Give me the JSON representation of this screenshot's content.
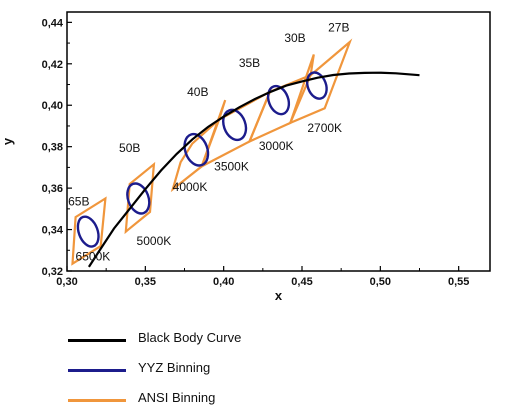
{
  "chart_data": {
    "type": "line",
    "title": "",
    "xlabel": "x",
    "ylabel": "y",
    "xlim": [
      0.3,
      0.57
    ],
    "ylim": [
      0.32,
      0.445
    ],
    "x_ticks": [
      0.3,
      0.35,
      0.4,
      0.45,
      0.5,
      0.55
    ],
    "x_tick_labels": [
      "0,30",
      "0,35",
      "0,40",
      "0,45",
      "0,50",
      "0,55"
    ],
    "y_ticks": [
      0.32,
      0.34,
      0.36,
      0.38,
      0.4,
      0.42,
      0.44
    ],
    "y_tick_labels": [
      "0,32",
      "0,34",
      "0,36",
      "0,38",
      "0,40",
      "0,42",
      "0,44"
    ],
    "grid": false,
    "legend_position": "bottom-left",
    "series": [
      {
        "name": "Black Body Curve",
        "color": "#000000",
        "x": [
          0.314,
          0.32,
          0.33,
          0.34,
          0.35,
          0.36,
          0.37,
          0.38,
          0.39,
          0.4,
          0.41,
          0.42,
          0.43,
          0.44,
          0.45,
          0.46,
          0.47,
          0.48,
          0.49,
          0.5,
          0.51,
          0.525
        ],
        "y": [
          0.322,
          0.329,
          0.3405,
          0.35,
          0.3595,
          0.3685,
          0.3765,
          0.3835,
          0.3895,
          0.3945,
          0.399,
          0.403,
          0.4065,
          0.4095,
          0.4115,
          0.4133,
          0.4146,
          0.4153,
          0.4156,
          0.4157,
          0.4154,
          0.4145
        ]
      }
    ],
    "ellipses": [
      {
        "cx": 0.3135,
        "cy": 0.339,
        "rx": 0.006,
        "ry": 0.0075
      },
      {
        "cx": 0.3455,
        "cy": 0.355,
        "rx": 0.0065,
        "ry": 0.0075
      },
      {
        "cx": 0.3825,
        "cy": 0.3785,
        "rx": 0.007,
        "ry": 0.0078
      },
      {
        "cx": 0.407,
        "cy": 0.3905,
        "rx": 0.0068,
        "ry": 0.0075
      },
      {
        "cx": 0.435,
        "cy": 0.4025,
        "rx": 0.0062,
        "ry": 0.007
      },
      {
        "cx": 0.4595,
        "cy": 0.4095,
        "rx": 0.0058,
        "ry": 0.0065
      }
    ],
    "ansi_quads": [
      [
        [
          0.3035,
          0.3235
        ],
        [
          0.3215,
          0.332
        ],
        [
          0.3245,
          0.355
        ],
        [
          0.3055,
          0.346
        ]
      ],
      [
        [
          0.3375,
          0.339
        ],
        [
          0.353,
          0.3485
        ],
        [
          0.3555,
          0.3715
        ],
        [
          0.34,
          0.362
        ]
      ],
      [
        [
          0.3675,
          0.3595
        ],
        [
          0.386,
          0.3705
        ],
        [
          0.397,
          0.393
        ],
        [
          0.38,
          0.3815
        ],
        [
          0.3725,
          0.3725
        ]
      ],
      [
        [
          0.386,
          0.3705
        ],
        [
          0.4165,
          0.3825
        ],
        [
          0.4295,
          0.4065
        ],
        [
          0.397,
          0.393
        ],
        [
          0.401,
          0.4025
        ]
      ],
      [
        [
          0.4165,
          0.3825
        ],
        [
          0.4425,
          0.3915
        ],
        [
          0.4555,
          0.4145
        ],
        [
          0.4295,
          0.4065
        ]
      ],
      [
        [
          0.4425,
          0.3915
        ],
        [
          0.4645,
          0.3985
        ],
        [
          0.4805,
          0.4305
        ],
        [
          0.4555,
          0.4145
        ],
        [
          0.4575,
          0.4245
        ]
      ]
    ],
    "annotations": [
      {
        "text": "65B",
        "x": 0.3075,
        "y": 0.3515
      },
      {
        "text": "6500K",
        "x": 0.3165,
        "y": 0.325
      },
      {
        "text": "50B",
        "x": 0.34,
        "y": 0.3775
      },
      {
        "text": "5000K",
        "x": 0.3555,
        "y": 0.3325
      },
      {
        "text": "40B",
        "x": 0.3835,
        "y": 0.4045
      },
      {
        "text": "4000K",
        "x": 0.3785,
        "y": 0.3585
      },
      {
        "text": "3500K",
        "x": 0.405,
        "y": 0.3685
      },
      {
        "text": "3000K",
        "x": 0.4335,
        "y": 0.3785
      },
      {
        "text": "35B",
        "x": 0.4165,
        "y": 0.4185
      },
      {
        "text": "2700K",
        "x": 0.4645,
        "y": 0.387
      },
      {
        "text": "30B",
        "x": 0.4455,
        "y": 0.4305
      },
      {
        "text": "27B",
        "x": 0.4735,
        "y": 0.4355
      }
    ]
  },
  "legend": [
    {
      "label": "Black Body Curve",
      "color": "#000000"
    },
    {
      "label": "YYZ Binning",
      "color": "#1c1c8c"
    },
    {
      "label": "ANSI Binning",
      "color": "#f0963c"
    }
  ],
  "colors": {
    "curve": "#000000",
    "ellipse": "#1c1c8c",
    "ansi": "#f0963c"
  }
}
